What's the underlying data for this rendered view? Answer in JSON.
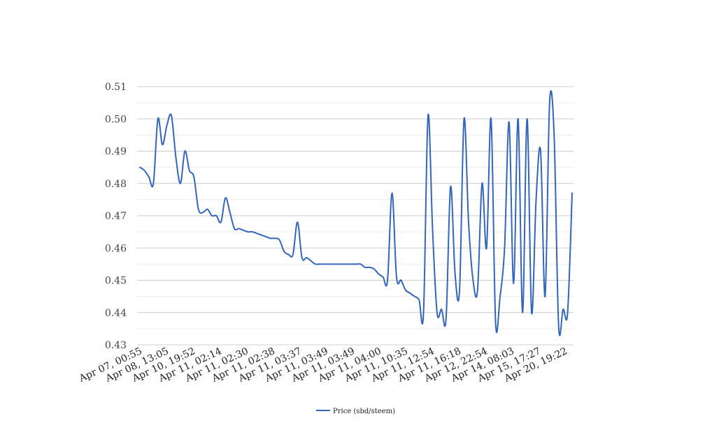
{
  "chart_data": {
    "type": "line",
    "title": "",
    "xlabel": "",
    "ylabel": "",
    "ylim": [
      0.43,
      0.51
    ],
    "y_ticks": [
      "0.43",
      "0.44",
      "0.45",
      "0.46",
      "0.47",
      "0.48",
      "0.49",
      "0.50",
      "0.51"
    ],
    "x_tick_labels": [
      "Apr 07, 00:55",
      "Apr 08, 13:05",
      "Apr 10, 19:52",
      "Apr 11, 02:14",
      "Apr 11, 02:30",
      "Apr 11, 02:38",
      "Apr 11, 03:37",
      "Apr 11, 03:49",
      "Apr 11, 03:49",
      "Apr 11, 04:00",
      "Apr 11, 10:35",
      "Apr 11, 12:54",
      "Apr 11, 16:18",
      "Apr 12, 22:54",
      "Apr 14, 08:03",
      "Apr 15, 17:27",
      "Apr 20, 19:22"
    ],
    "grid": true,
    "legend_position": "bottom",
    "series": [
      {
        "name": "Price (sbd/steem)",
        "color": "#3465bb",
        "values": [
          0.485,
          0.484,
          0.482,
          0.48,
          0.5,
          0.492,
          0.498,
          0.501,
          0.488,
          0.48,
          0.49,
          0.484,
          0.482,
          0.472,
          0.471,
          0.472,
          0.47,
          0.47,
          0.468,
          0.4755,
          0.471,
          0.466,
          0.466,
          0.4655,
          0.465,
          0.465,
          0.4645,
          0.464,
          0.4635,
          0.463,
          0.463,
          0.4625,
          0.459,
          0.458,
          0.458,
          0.468,
          0.457,
          0.457,
          0.456,
          0.455,
          0.455,
          0.455,
          0.455,
          0.455,
          0.455,
          0.455,
          0.455,
          0.455,
          0.455,
          0.455,
          0.454,
          0.454,
          0.4535,
          0.452,
          0.451,
          0.45,
          0.477,
          0.451,
          0.45,
          0.447,
          0.446,
          0.445,
          0.444,
          0.44,
          0.501,
          0.466,
          0.44,
          0.441,
          0.438,
          0.479,
          0.452,
          0.447,
          0.5,
          0.468,
          0.45,
          0.447,
          0.48,
          0.46,
          0.5,
          0.437,
          0.445,
          0.46,
          0.499,
          0.449,
          0.5,
          0.44,
          0.5,
          0.44,
          0.475,
          0.49,
          0.445,
          0.505,
          0.495,
          0.436,
          0.441,
          0.44,
          0.477
        ]
      }
    ]
  }
}
